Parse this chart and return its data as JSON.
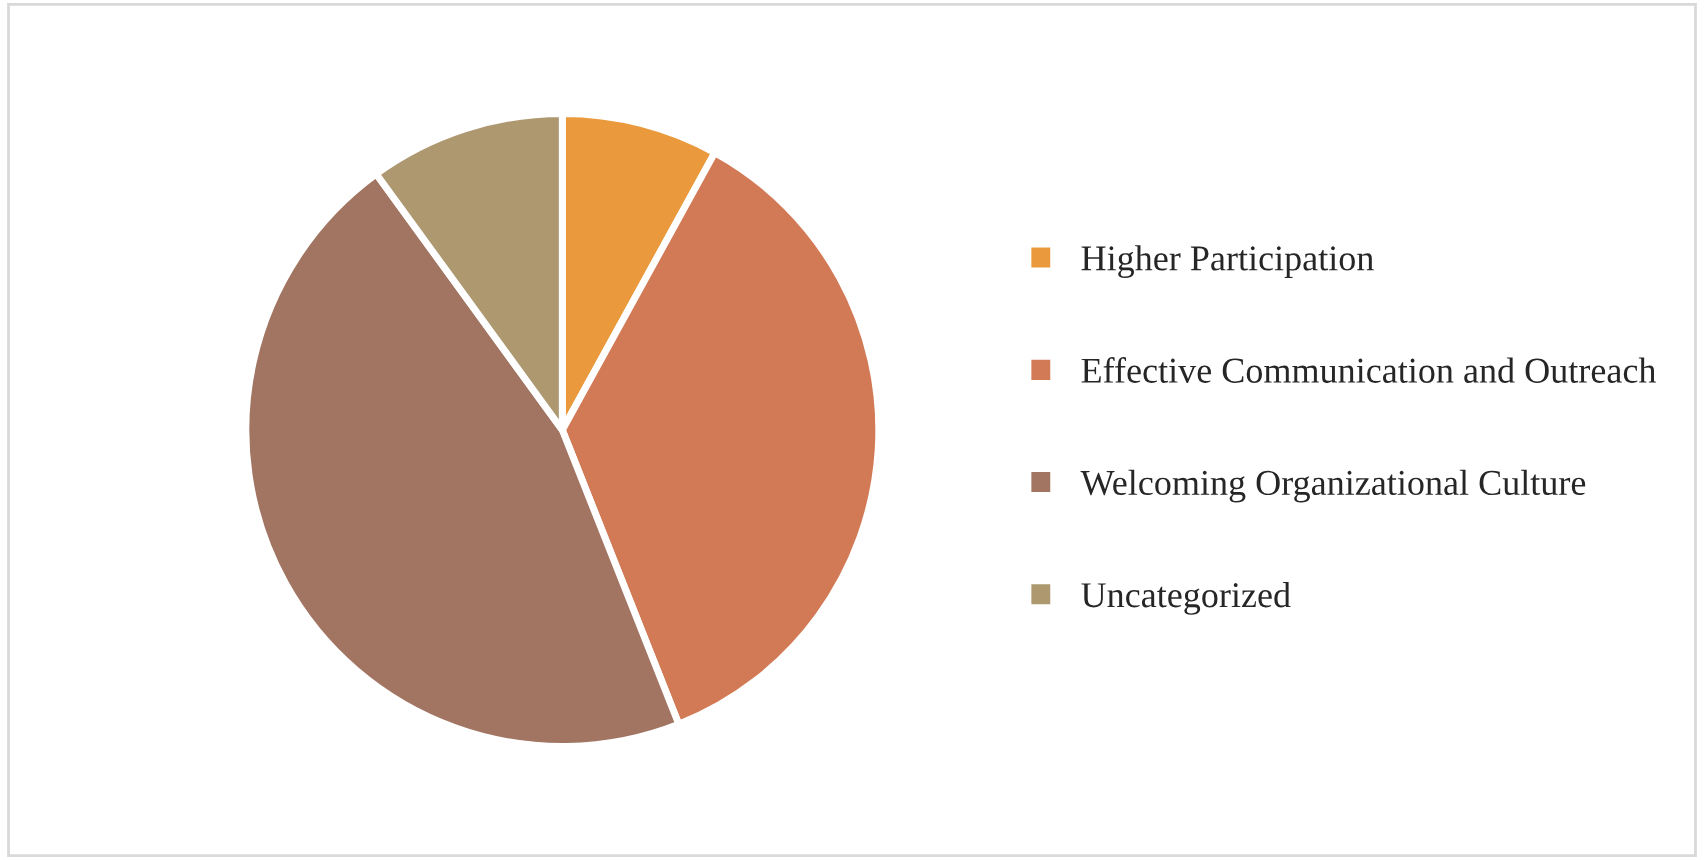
{
  "chart_data": {
    "type": "pie",
    "categories": [
      "Higher Participation",
      "Effective Communication and Outreach",
      "Welcoming Organizational Culture",
      "Uncategorized"
    ],
    "values": [
      8,
      36,
      46,
      10
    ],
    "colors": [
      "#ea9a3c",
      "#d27a56",
      "#a27462",
      "#ad9870"
    ],
    "legend": "right"
  }
}
